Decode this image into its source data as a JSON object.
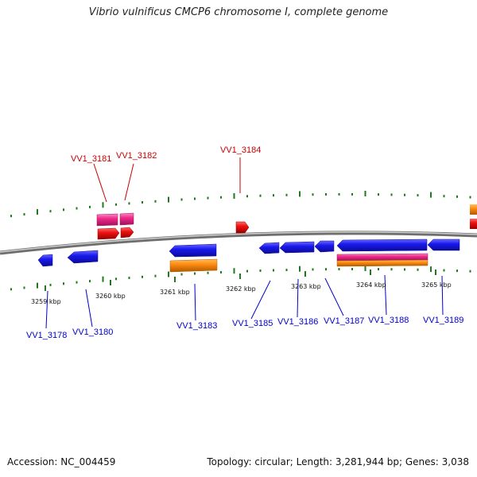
{
  "title": "Vibrio vulnificus CMCP6 chromosome I, complete genome",
  "footer": {
    "accession": "Accession: NC_004459",
    "summary": "Topology: circular; Length: 3,281,944 bp; Genes: 3,038"
  },
  "colors": {
    "backbone": "#8a8a8a",
    "gc_tick": "#1f7a1f",
    "gene_blue": "#1a1aee",
    "gene_red": "#ee1111",
    "gene_pink": "#ee2a8a",
    "gene_orange": "#ff8c10",
    "label_red": "#cc0000",
    "label_blue": "#0000cc"
  },
  "scale_labels": [
    "3259 kbp",
    "3260 kbp",
    "3261 kbp",
    "3262 kbp",
    "3263 kbp",
    "3264 kbp",
    "3265 kbp"
  ],
  "top_labels": [
    "VV1_3181",
    "VV1_3182",
    "VV1_3184"
  ],
  "bottom_labels": [
    "VV1_3178",
    "VV1_3180",
    "VV1_3183",
    "VV1_3185",
    "VV1_3186",
    "VV1_3187",
    "VV1_3188",
    "VV1_3189"
  ]
}
